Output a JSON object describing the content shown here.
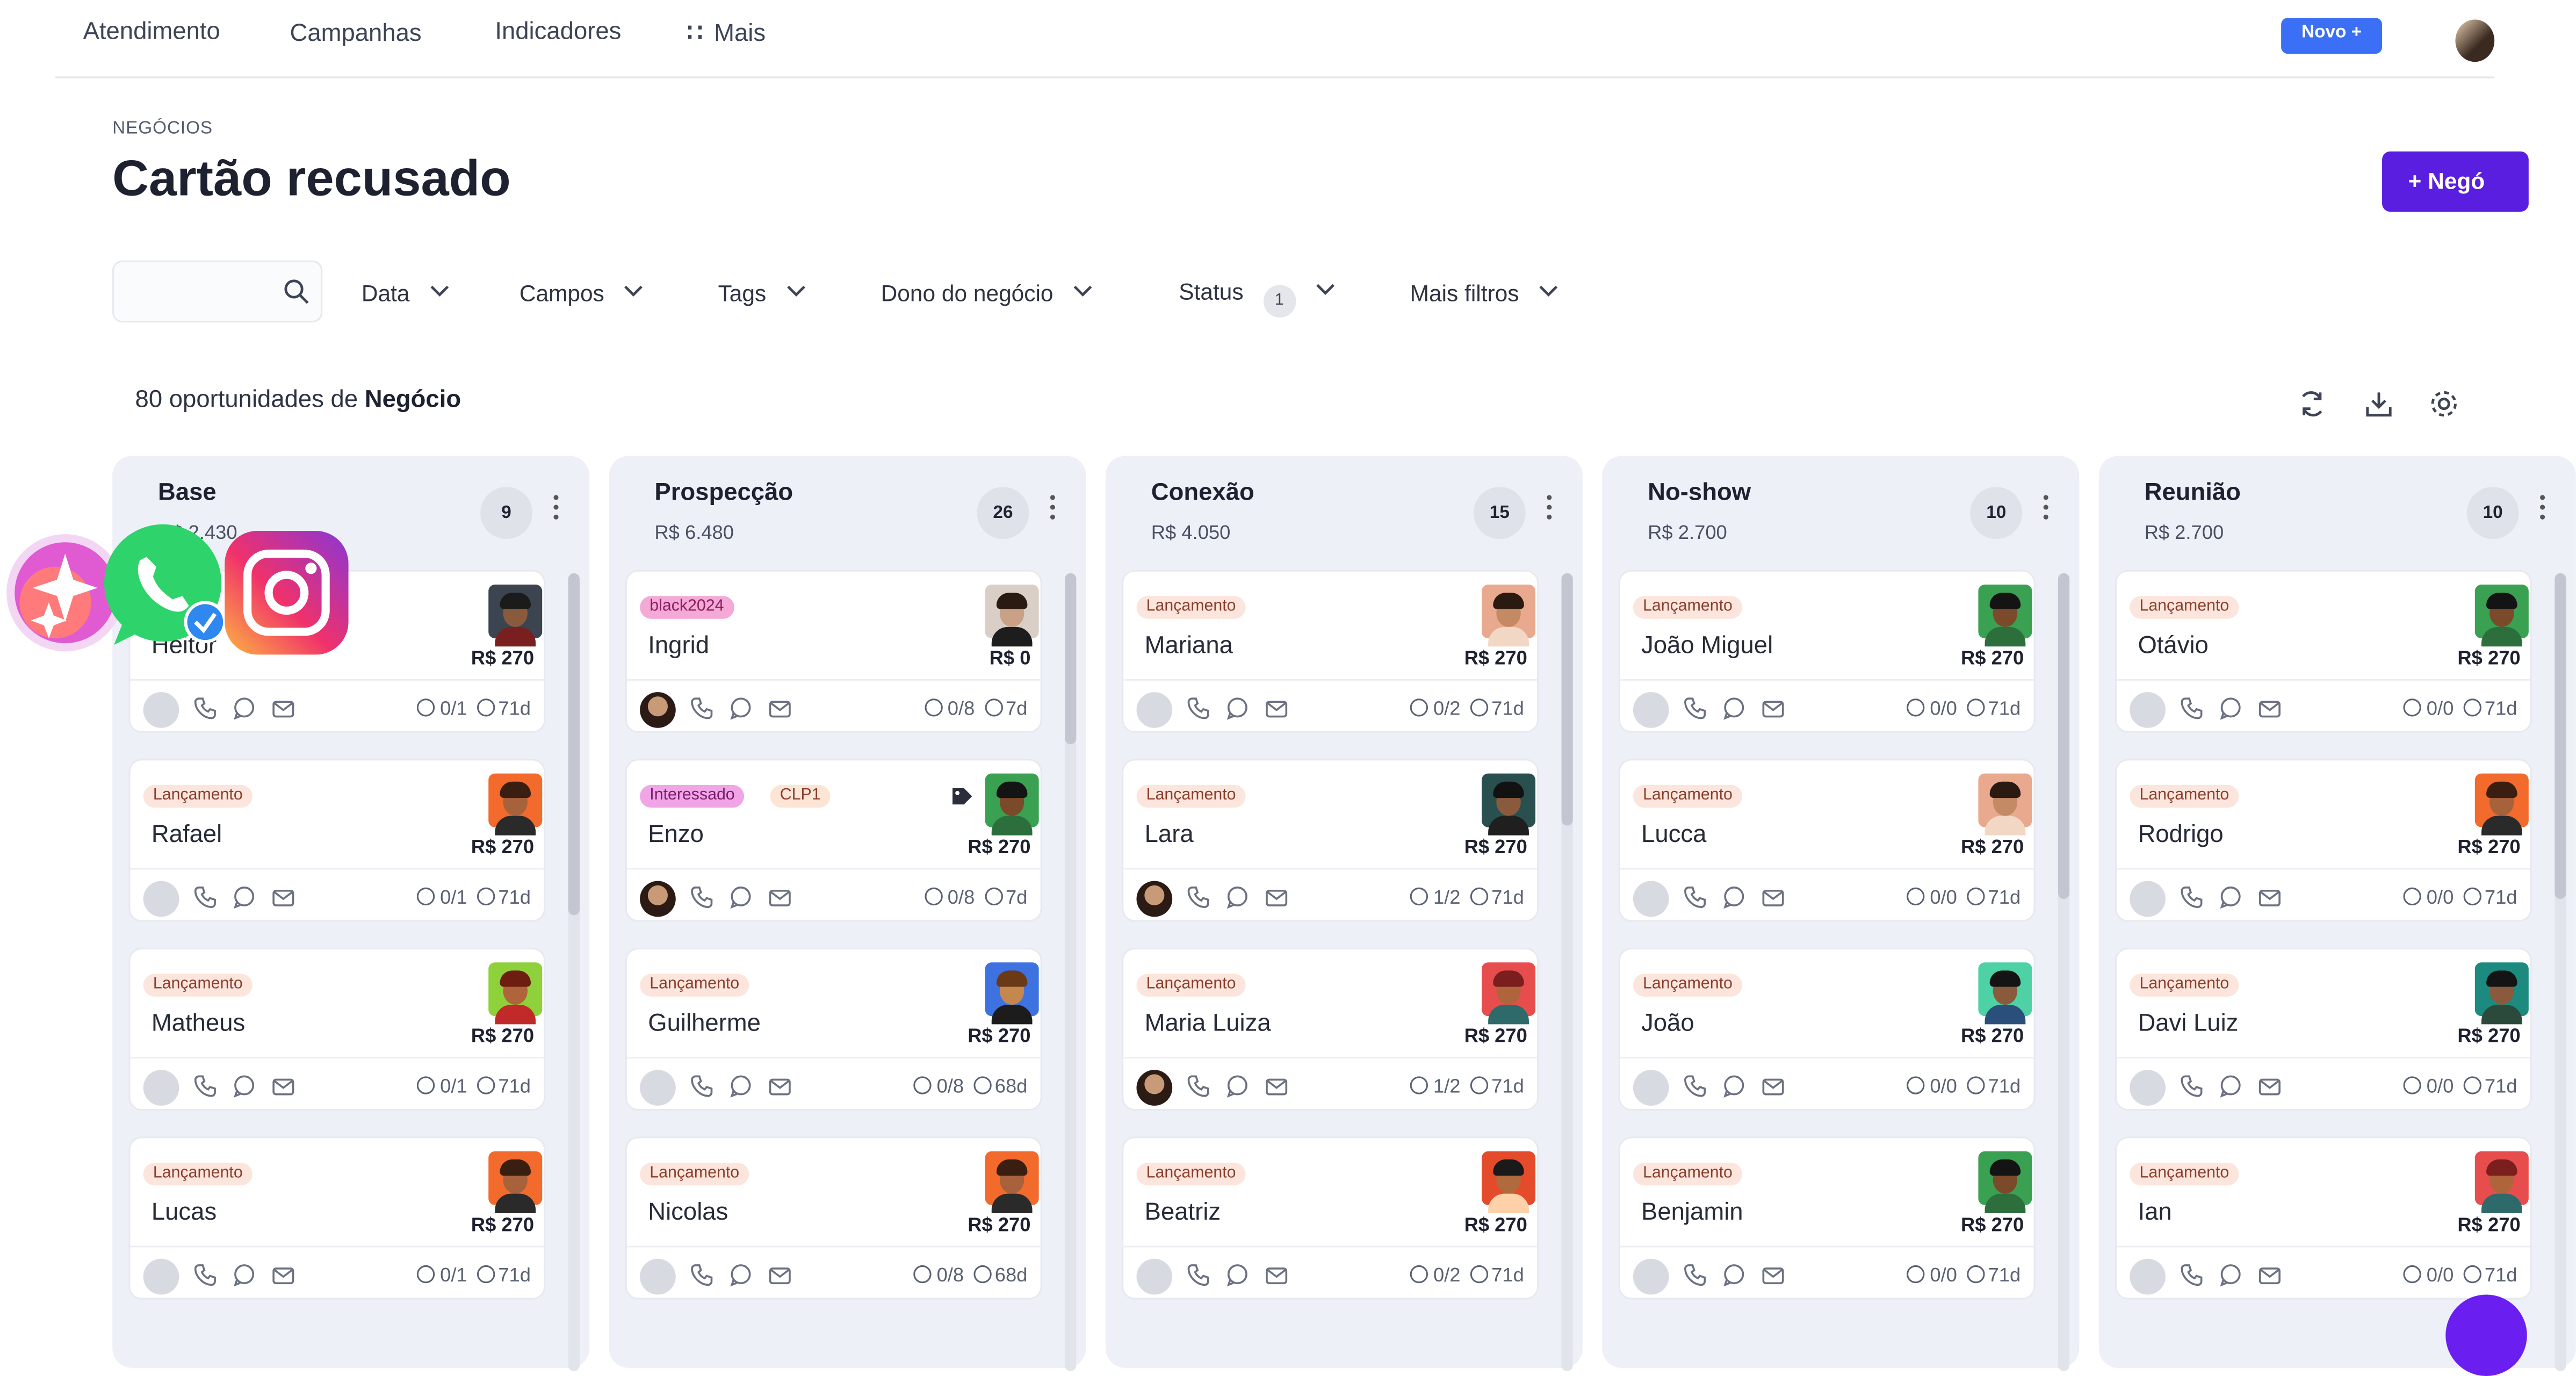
{
  "nav": {
    "items": [
      "Atendimento",
      "Campanhas",
      "Indicadores",
      "Mais"
    ],
    "novo_button": "Novo +"
  },
  "header": {
    "eyebrow": "NEGÓCIOS",
    "title": "Cartão recusado",
    "new_button": "+ Negó"
  },
  "filters": {
    "search_placeholder": "",
    "data": "Data",
    "campos": "Campos",
    "tags": "Tags",
    "dono": "Dono do negócio",
    "status": "Status",
    "status_count": "1",
    "mais": "Mais filtros"
  },
  "summary": {
    "prefix": "80 oportunidades de",
    "entity": "Negócio"
  },
  "columns": [
    {
      "name": "Base",
      "sum": "R$ 2.430",
      "count": "9",
      "cards": [
        {
          "tag": "",
          "name": "Heitor",
          "price": "R$ 270",
          "tasks": "0/1",
          "age": "71d",
          "avatar": "dark",
          "user_photo": false
        },
        {
          "tag": "Lançamento",
          "name": "Rafael",
          "price": "R$ 270",
          "tasks": "0/1",
          "age": "71d",
          "avatar": "orange",
          "user_photo": false
        },
        {
          "tag": "Lançamento",
          "name": "Matheus",
          "price": "R$ 270",
          "tasks": "0/1",
          "age": "71d",
          "avatar": "lime",
          "user_photo": false
        },
        {
          "tag": "Lançamento",
          "name": "Lucas",
          "price": "R$ 270",
          "tasks": "0/1",
          "age": "71d",
          "avatar": "orange",
          "user_photo": false
        }
      ]
    },
    {
      "name": "Prospecção",
      "sum": "R$ 6.480",
      "count": "26",
      "cards": [
        {
          "tag": "black2024",
          "name": "Ingrid",
          "price": "R$ 0",
          "tasks": "0/8",
          "age": "7d",
          "avatar": "photo",
          "user_photo": true
        },
        {
          "tag": "Interessado",
          "tag2": "CLP1",
          "name": "Enzo",
          "price": "R$ 270",
          "tasks": "0/8",
          "age": "7d",
          "avatar": "green",
          "user_photo": true,
          "tag_icon": "tag-icon"
        },
        {
          "tag": "Lançamento",
          "name": "Guilherme",
          "price": "R$ 270",
          "tasks": "0/8",
          "age": "68d",
          "avatar": "blue",
          "user_photo": false
        },
        {
          "tag": "Lançamento",
          "name": "Nicolas",
          "price": "R$ 270",
          "tasks": "0/8",
          "age": "68d",
          "avatar": "orange",
          "user_photo": false
        }
      ]
    },
    {
      "name": "Conexão",
      "sum": "R$ 4.050",
      "count": "15",
      "cards": [
        {
          "tag": "Lançamento",
          "name": "Mariana",
          "price": "R$ 270",
          "tasks": "0/2",
          "age": "71d",
          "avatar": "peach",
          "user_photo": false
        },
        {
          "tag": "Lançamento",
          "name": "Lara",
          "price": "R$ 270",
          "tasks": "1/2",
          "age": "71d",
          "avatar": "darkteal",
          "user_photo": true
        },
        {
          "tag": "Lançamento",
          "name": "Maria Luiza",
          "price": "R$ 270",
          "tasks": "1/2",
          "age": "71d",
          "avatar": "red",
          "user_photo": true
        },
        {
          "tag": "Lançamento",
          "name": "Beatriz",
          "price": "R$ 270",
          "tasks": "0/2",
          "age": "71d",
          "avatar": "redorange",
          "user_photo": false
        }
      ]
    },
    {
      "name": "No-show",
      "sum": "R$ 2.700",
      "count": "10",
      "cards": [
        {
          "tag": "Lançamento",
          "name": "João Miguel",
          "price": "R$ 270",
          "tasks": "0/0",
          "age": "71d",
          "avatar": "green",
          "user_photo": false
        },
        {
          "tag": "Lançamento",
          "name": "Lucca",
          "price": "R$ 270",
          "tasks": "0/0",
          "age": "71d",
          "avatar": "peach",
          "user_photo": false
        },
        {
          "tag": "Lançamento",
          "name": "João",
          "price": "R$ 270",
          "tasks": "0/0",
          "age": "71d",
          "avatar": "mint",
          "user_photo": false
        },
        {
          "tag": "Lançamento",
          "name": "Benjamin",
          "price": "R$ 270",
          "tasks": "0/0",
          "age": "71d",
          "avatar": "green",
          "user_photo": false
        }
      ]
    },
    {
      "name": "Reunião",
      "sum": "R$ 2.700",
      "count": "10",
      "cards": [
        {
          "tag": "Lançamento",
          "name": "Otávio",
          "price": "R$ 270",
          "tasks": "0/0",
          "age": "71d",
          "avatar": "green",
          "user_photo": false
        },
        {
          "tag": "Lançamento",
          "name": "Rodrigo",
          "price": "R$ 270",
          "tasks": "0/0",
          "age": "71d",
          "avatar": "orange",
          "user_photo": false
        },
        {
          "tag": "Lançamento",
          "name": "Davi Luiz",
          "price": "R$ 270",
          "tasks": "0/0",
          "age": "71d",
          "avatar": "teal",
          "user_photo": false
        },
        {
          "tag": "Lançamento",
          "name": "Ian",
          "price": "R$ 270",
          "tasks": "0/0",
          "age": "71d",
          "avatar": "red",
          "user_photo": false
        }
      ]
    }
  ],
  "colors": {
    "accent": "#5a1ee0",
    "novo": "#3b6ff5",
    "column_bg": "#eef0f8",
    "tag_launch_bg": "#fce5dc"
  },
  "icons": {
    "search": "search-icon",
    "chevron": "chevron-down-icon",
    "refresh": "refresh-icon",
    "download": "download-icon",
    "settings": "gear-icon",
    "phone": "phone-icon",
    "chat": "chat-icon",
    "mail": "mail-icon",
    "clock": "clock-icon",
    "check": "check-circle-icon",
    "overlay": [
      "sparkle-app-icon",
      "whatsapp-icon",
      "instagram-icon"
    ]
  }
}
